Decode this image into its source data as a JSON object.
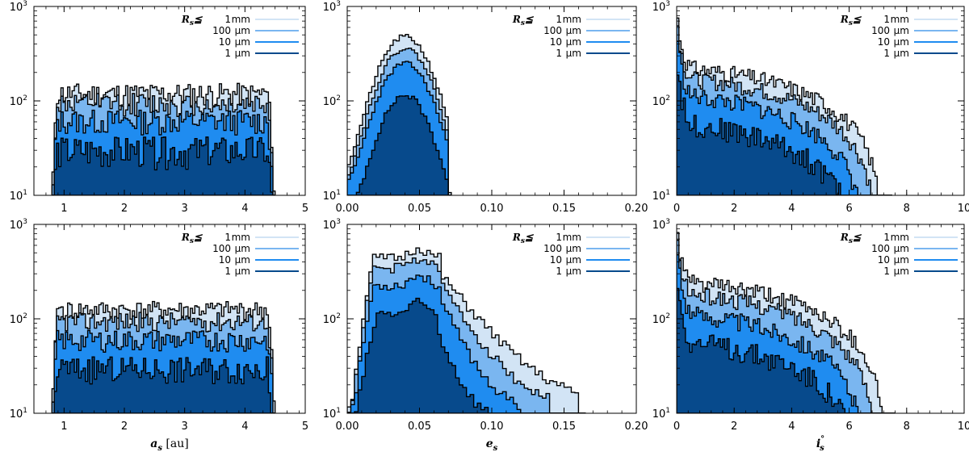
{
  "colors": {
    "mm": "#d2e4f5",
    "um100": "#7ab6f0",
    "um10": "#1f8cf0",
    "um1": "#074a8c",
    "edge": "#000000"
  },
  "chart_data": [
    {
      "type": "histogram",
      "panel": "top-left",
      "scale_y": "log",
      "xlim": [
        0.5,
        5
      ],
      "ylim": [
        10,
        1000
      ],
      "xticks": [
        1,
        2,
        3,
        4,
        5
      ],
      "xtick_labels": [
        "1",
        "2",
        "3",
        "4",
        "5"
      ],
      "ytick_labels": [
        "10^1",
        "10^2",
        "10^3"
      ],
      "xlabel": "",
      "legend": {
        "title": "R_s≦",
        "position": "top-right",
        "entries": [
          {
            "num": "1",
            "unit": "mm"
          },
          {
            "num": "100",
            "unit": "μm"
          },
          {
            "num": "10",
            "unit": "μm"
          },
          {
            "num": "1",
            "unit": "μm"
          }
        ]
      },
      "bins": {
        "start": 0.8,
        "end": 4.5,
        "count": 100
      },
      "series": [
        {
          "name": "1 mm",
          "shape": "flat",
          "peak": 120,
          "noise": 0.28,
          "seed": 11
        },
        {
          "name": "100 μm",
          "shape": "flat",
          "peak": 95,
          "noise": 0.28,
          "seed": 12
        },
        {
          "name": "10 μm",
          "shape": "flat",
          "peak": 62,
          "noise": 0.3,
          "seed": 13
        },
        {
          "name": "1 μm",
          "shape": "flat",
          "peak": 30,
          "noise": 0.38,
          "seed": 14
        }
      ]
    },
    {
      "type": "histogram",
      "panel": "top-middle",
      "scale_y": "log",
      "xlim": [
        0,
        0.2
      ],
      "ylim": [
        10,
        1000
      ],
      "xticks": [
        0,
        0.05,
        0.1,
        0.15,
        0.2
      ],
      "xtick_labels": [
        "0.00",
        "0.05",
        "0.10",
        "0.15",
        "0.20"
      ],
      "ytick_labels": [
        "10^1",
        "10^2",
        "10^3"
      ],
      "xlabel": "",
      "legend": {
        "title": "R_s≦",
        "position": "top-right",
        "entries": [
          {
            "num": "1",
            "unit": "mm"
          },
          {
            "num": "100",
            "unit": "μm"
          },
          {
            "num": "10",
            "unit": "μm"
          },
          {
            "num": "1",
            "unit": "μm"
          }
        ]
      },
      "bins": {
        "start": 0.0,
        "end": 0.072,
        "count": 34
      },
      "series": [
        {
          "name": "1 mm",
          "shape": "bell",
          "peak": 480,
          "mu": 0.04,
          "sigma": 0.014,
          "floor": 12,
          "noise": 0.06,
          "seed": 21
        },
        {
          "name": "100 μm",
          "shape": "bell",
          "peak": 360,
          "mu": 0.04,
          "sigma": 0.014,
          "floor": 10,
          "noise": 0.06,
          "seed": 22
        },
        {
          "name": "10 μm",
          "shape": "bell",
          "peak": 250,
          "mu": 0.04,
          "sigma": 0.014,
          "floor": 9,
          "noise": 0.06,
          "seed": 23
        },
        {
          "name": "1 μm",
          "shape": "bell",
          "peak": 115,
          "mu": 0.04,
          "sigma": 0.013,
          "floor": 6,
          "noise": 0.08,
          "seed": 24
        }
      ]
    },
    {
      "type": "histogram",
      "panel": "top-right",
      "scale_y": "log",
      "xlim": [
        0,
        10
      ],
      "ylim": [
        10,
        1000
      ],
      "xticks": [
        0,
        2,
        4,
        6,
        8,
        10
      ],
      "xtick_labels": [
        "0",
        "2",
        "4",
        "6",
        "8",
        "10"
      ],
      "ytick_labels": [
        "10^1",
        "10^2",
        "10^3"
      ],
      "xlabel": "",
      "legend": {
        "title": "R_s≦",
        "position": "top-right",
        "entries": [
          {
            "num": "1",
            "unit": "mm"
          },
          {
            "num": "100",
            "unit": "μm"
          },
          {
            "num": "10",
            "unit": "μm"
          },
          {
            "num": "1",
            "unit": "μm"
          }
        ]
      },
      "bins": {
        "start": 0.0,
        "end": 7.5,
        "count": 100
      },
      "series": [
        {
          "name": "1 mm",
          "shape": "decay",
          "spike": 900,
          "base": 220,
          "tail": 7.2,
          "noise": 0.2,
          "seed": 31
        },
        {
          "name": "100 μm",
          "shape": "decay",
          "spike": 800,
          "base": 170,
          "tail": 7.0,
          "noise": 0.2,
          "seed": 32
        },
        {
          "name": "10 μm",
          "shape": "decay",
          "spike": 600,
          "base": 110,
          "tail": 6.6,
          "noise": 0.22,
          "seed": 33
        },
        {
          "name": "1 μm",
          "shape": "decay",
          "spike": 300,
          "base": 55,
          "tail": 6.3,
          "noise": 0.28,
          "seed": 34
        }
      ]
    },
    {
      "type": "histogram",
      "panel": "bottom-left",
      "scale_y": "log",
      "xlim": [
        0.5,
        5
      ],
      "ylim": [
        10,
        1000
      ],
      "xticks": [
        1,
        2,
        3,
        4,
        5
      ],
      "xtick_labels": [
        "1",
        "2",
        "3",
        "4",
        "5"
      ],
      "ytick_labels": [
        "10^1",
        "10^2",
        "10^3"
      ],
      "xlabel": "a_s [au]",
      "legend": {
        "title": "R_s≦",
        "position": "top-right",
        "entries": [
          {
            "num": "1",
            "unit": "mm"
          },
          {
            "num": "100",
            "unit": "μm"
          },
          {
            "num": "10",
            "unit": "μm"
          },
          {
            "num": "1",
            "unit": "μm"
          }
        ]
      },
      "bins": {
        "start": 0.8,
        "end": 4.5,
        "count": 100
      },
      "series": [
        {
          "name": "1 mm",
          "shape": "flat",
          "peak": 125,
          "noise": 0.22,
          "seed": 41
        },
        {
          "name": "100 μm",
          "shape": "flat",
          "peak": 95,
          "noise": 0.24,
          "seed": 42
        },
        {
          "name": "10 μm",
          "shape": "flat",
          "peak": 60,
          "noise": 0.26,
          "seed": 43
        },
        {
          "name": "1 μm",
          "shape": "flat",
          "peak": 30,
          "noise": 0.32,
          "seed": 44
        }
      ]
    },
    {
      "type": "histogram",
      "panel": "bottom-middle",
      "scale_y": "log",
      "xlim": [
        0,
        0.2
      ],
      "ylim": [
        10,
        1000
      ],
      "xticks": [
        0,
        0.05,
        0.1,
        0.15,
        0.2
      ],
      "xtick_labels": [
        "0.00",
        "0.05",
        "0.10",
        "0.15",
        "0.20"
      ],
      "ytick_labels": [
        "10^1",
        "10^2",
        "10^3"
      ],
      "xlabel": "e_s",
      "legend": {
        "title": "R_s≦",
        "position": "top-right",
        "entries": [
          {
            "num": "1",
            "unit": "mm"
          },
          {
            "num": "100",
            "unit": "μm"
          },
          {
            "num": "10",
            "unit": "μm"
          },
          {
            "num": "1",
            "unit": "μm"
          }
        ]
      },
      "bins": {
        "start": 0.0,
        "end": 0.165,
        "count": 66
      },
      "series": [
        {
          "name": "1 mm",
          "shape": "wide",
          "peak": 560,
          "lo": 0.018,
          "hi": 0.065,
          "tailEnd": 0.16,
          "floor": 12,
          "noise": 0.12,
          "seed": 51
        },
        {
          "name": "100 μm",
          "shape": "wide",
          "peak": 440,
          "lo": 0.018,
          "hi": 0.065,
          "tailEnd": 0.14,
          "floor": 11,
          "noise": 0.12,
          "seed": 52
        },
        {
          "name": "10 μm",
          "shape": "wide",
          "peak": 290,
          "lo": 0.018,
          "hi": 0.065,
          "tailEnd": 0.12,
          "floor": 10,
          "noise": 0.12,
          "seed": 53
        },
        {
          "name": "1 μm",
          "shape": "wide",
          "peak": 145,
          "lo": 0.02,
          "hi": 0.062,
          "tailEnd": 0.105,
          "floor": 8,
          "noise": 0.14,
          "seed": 54
        }
      ]
    },
    {
      "type": "histogram",
      "panel": "bottom-right",
      "scale_y": "log",
      "xlim": [
        0,
        10
      ],
      "ylim": [
        10,
        1000
      ],
      "xticks": [
        0,
        2,
        4,
        6,
        8,
        10
      ],
      "xtick_labels": [
        "0",
        "2",
        "4",
        "6",
        "8",
        "10"
      ],
      "ytick_labels": [
        "10^1",
        "10^2",
        "10^3"
      ],
      "xlabel": "i°_s",
      "legend": {
        "title": "R_s≦",
        "position": "top-right",
        "entries": [
          {
            "num": "1",
            "unit": "mm"
          },
          {
            "num": "100",
            "unit": "μm"
          },
          {
            "num": "10",
            "unit": "μm"
          },
          {
            "num": "1",
            "unit": "μm"
          }
        ]
      },
      "bins": {
        "start": 0.0,
        "end": 7.6,
        "count": 100
      },
      "series": [
        {
          "name": "1 mm",
          "shape": "decay",
          "spike": 950,
          "base": 240,
          "tail": 7.3,
          "noise": 0.2,
          "seed": 61
        },
        {
          "name": "100 μm",
          "shape": "decay",
          "spike": 850,
          "base": 180,
          "tail": 7.0,
          "noise": 0.2,
          "seed": 62
        },
        {
          "name": "10 μm",
          "shape": "decay",
          "spike": 650,
          "base": 110,
          "tail": 6.6,
          "noise": 0.22,
          "seed": 63
        },
        {
          "name": "1 μm",
          "shape": "decay",
          "spike": 320,
          "base": 55,
          "tail": 6.4,
          "noise": 0.28,
          "seed": 64
        }
      ]
    }
  ]
}
